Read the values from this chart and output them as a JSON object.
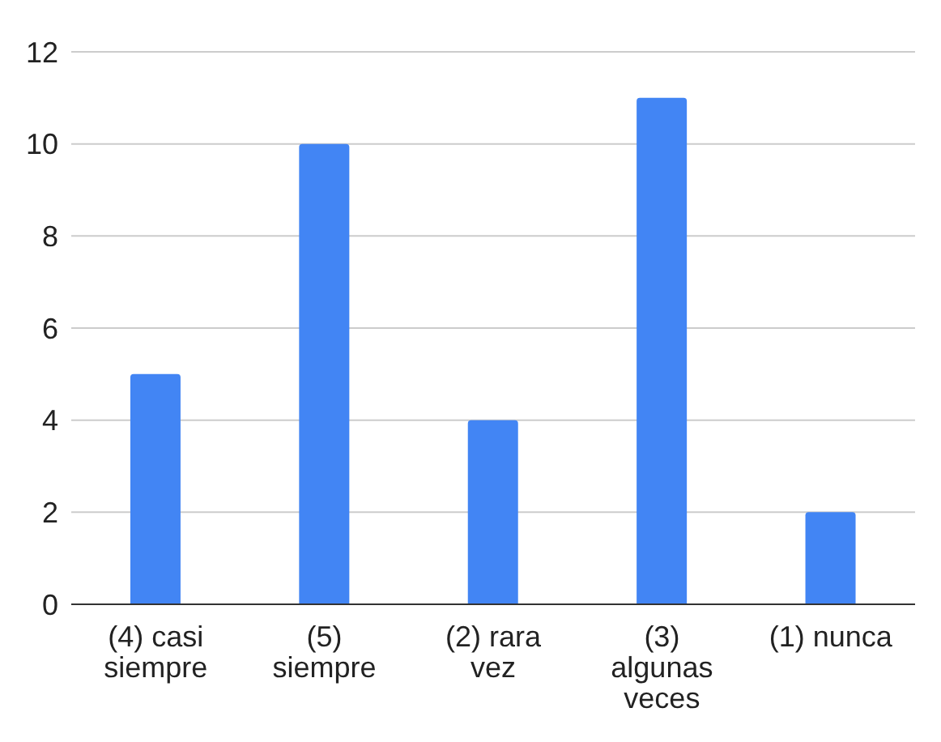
{
  "chart_data": {
    "type": "bar",
    "categories": [
      "(4) casi siempre",
      "(5) siempre",
      "(2) rara vez",
      "(3) algunas veces",
      "(1) nunca"
    ],
    "values": [
      5,
      10,
      4,
      11,
      2
    ],
    "color": "#4285f4",
    "ylim": [
      0,
      12
    ],
    "yticks": [
      0,
      2,
      4,
      6,
      8,
      10,
      12
    ],
    "grid": "y"
  }
}
